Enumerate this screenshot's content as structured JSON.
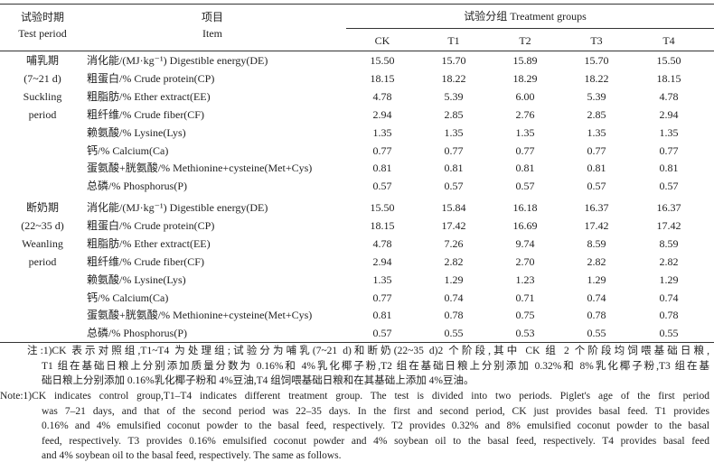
{
  "header": {
    "period": [
      "试验时期",
      "Test period"
    ],
    "item": [
      "项目",
      "Item"
    ],
    "groups_title": "试验分组 Treatment groups",
    "groups": [
      "CK",
      "T1",
      "T2",
      "T3",
      "T4"
    ]
  },
  "periods": [
    {
      "label": [
        "哺乳期",
        "(7~21 d)",
        "Suckling",
        "period"
      ],
      "rows": [
        {
          "item": "消化能/(MJ·kg⁻¹) Digestible energy(DE)",
          "values": [
            "15.50",
            "15.70",
            "15.89",
            "15.70",
            "15.50"
          ]
        },
        {
          "item": "粗蛋白/% Crude protein(CP)",
          "values": [
            "18.15",
            "18.22",
            "18.29",
            "18.22",
            "18.15"
          ]
        },
        {
          "item": "粗脂肪/% Ether extract(EE)",
          "values": [
            "4.78",
            "5.39",
            "6.00",
            "5.39",
            "4.78"
          ]
        },
        {
          "item": "粗纤维/% Crude fiber(CF)",
          "values": [
            "2.94",
            "2.85",
            "2.76",
            "2.85",
            "2.94"
          ]
        },
        {
          "item": "赖氨酸/% Lysine(Lys)",
          "values": [
            "1.35",
            "1.35",
            "1.35",
            "1.35",
            "1.35"
          ]
        },
        {
          "item": "钙/% Calcium(Ca)",
          "values": [
            "0.77",
            "0.77",
            "0.77",
            "0.77",
            "0.77"
          ]
        },
        {
          "item": "蛋氨酸+胱氨酸/% Methionine+cysteine(Met+Cys)",
          "values": [
            "0.81",
            "0.81",
            "0.81",
            "0.81",
            "0.81"
          ]
        },
        {
          "item": "总磷/% Phosphorus(P)",
          "values": [
            "0.57",
            "0.57",
            "0.57",
            "0.57",
            "0.57"
          ]
        }
      ]
    },
    {
      "label": [
        "断奶期",
        "(22~35 d)",
        "Weanling",
        "period"
      ],
      "rows": [
        {
          "item": "消化能/(MJ·kg⁻¹) Digestible energy(DE)",
          "values": [
            "15.50",
            "15.84",
            "16.18",
            "16.37",
            "16.37"
          ]
        },
        {
          "item": "粗蛋白/% Crude protein(CP)",
          "values": [
            "18.15",
            "17.42",
            "16.69",
            "17.42",
            "17.42"
          ]
        },
        {
          "item": "粗脂肪/% Ether extract(EE)",
          "values": [
            "4.78",
            "7.26",
            "9.74",
            "8.59",
            "8.59"
          ]
        },
        {
          "item": "粗纤维/% Crude fiber(CF)",
          "values": [
            "2.94",
            "2.82",
            "2.70",
            "2.82",
            "2.82"
          ]
        },
        {
          "item": "赖氨酸/% Lysine(Lys)",
          "values": [
            "1.35",
            "1.29",
            "1.23",
            "1.29",
            "1.29"
          ]
        },
        {
          "item": "钙/% Calcium(Ca)",
          "values": [
            "0.77",
            "0.74",
            "0.71",
            "0.74",
            "0.74"
          ]
        },
        {
          "item": "蛋氨酸+胱氨酸/% Methionine+cysteine(Met+Cys)",
          "values": [
            "0.81",
            "0.78",
            "0.75",
            "0.78",
            "0.78"
          ]
        },
        {
          "item": "总磷/% Phosphorus(P)",
          "values": [
            "0.57",
            "0.55",
            "0.53",
            "0.55",
            "0.55"
          ]
        }
      ]
    }
  ],
  "notes": {
    "zh": [
      "注:1)CK 表示对照组,T1~T4 为处理组;试验分为哺乳(7~21 d)和断奶(22~35 d)2 个阶段,其中 CK 组 2 个阶段均饲喂基础日粮,",
      "T1 组在基础日粮上分别添加质量分数为 0.16%和 4%乳化椰子粉,T2 组在基础日粮上分别添加 0.32%和 8%乳化椰子粉,T3 组在基",
      "础日粮上分别添加 0.16%乳化椰子粉和 4%豆油,T4 组饲喂基础日粮和在其基础上添加 4%豆油。"
    ],
    "en": [
      "Note:1)CK indicates control group,T1–T4 indicates different treatment group. The test is divided into two periods. Piglet's age of the first period",
      "was 7–21 days, and that of the second period was 22–35 days. In the first and second period, CK just provides basal feed. T1 provides",
      "0.16% and 4% emulsified coconut powder to the basal feed, respectively. T2 provides 0.32% and 8% emulsified coconut powder to the basal",
      "feed, respectively. T3 provides 0.16% emulsified coconut powder and 4% soybean oil to the basal feed, respectively. T4 provides basal feed",
      "and 4% soybean oil to the basal feed, respectively. The same as follows."
    ]
  }
}
